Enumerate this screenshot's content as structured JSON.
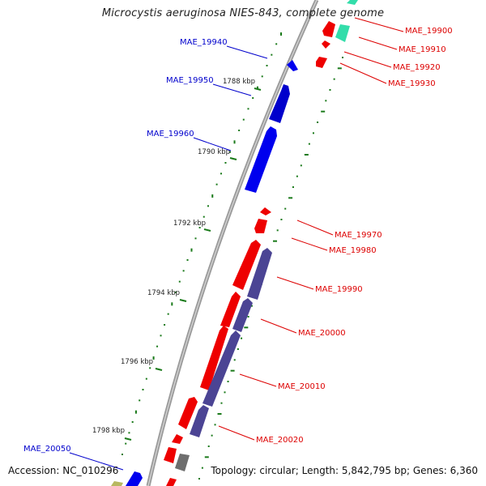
{
  "title": "Microcystis aeruginosa NIES-843, complete genome",
  "accession": "Accession: NC_010296",
  "summary": "Topology: circular; Length: 5,842,795 bp; Genes: 6,360",
  "colors": {
    "forward_gene": "#0000ee",
    "reverse_gene": "#ee0000",
    "purple_feature": "#4b4494",
    "teal_feature": "#33ddaa",
    "gray_feature": "#777777",
    "olive_feature": "#cccc66",
    "backbone": "#8a8a8a",
    "gc_dots": "#1a7a1a"
  },
  "kbp_ticks": [
    "1788 kbp",
    "1790 kbp",
    "1792 kbp",
    "1794 kbp",
    "1796 kbp",
    "1798 kbp"
  ],
  "left_labels": [
    "MAE_19940",
    "MAE_19950",
    "MAE_19960",
    "MAE_20050"
  ],
  "right_labels": [
    "MAE_19900",
    "MAE_19910",
    "MAE_19920",
    "MAE_19930",
    "MAE_19970",
    "MAE_19980",
    "MAE_19990",
    "MAE_20000",
    "MAE_20010",
    "MAE_20020"
  ]
}
